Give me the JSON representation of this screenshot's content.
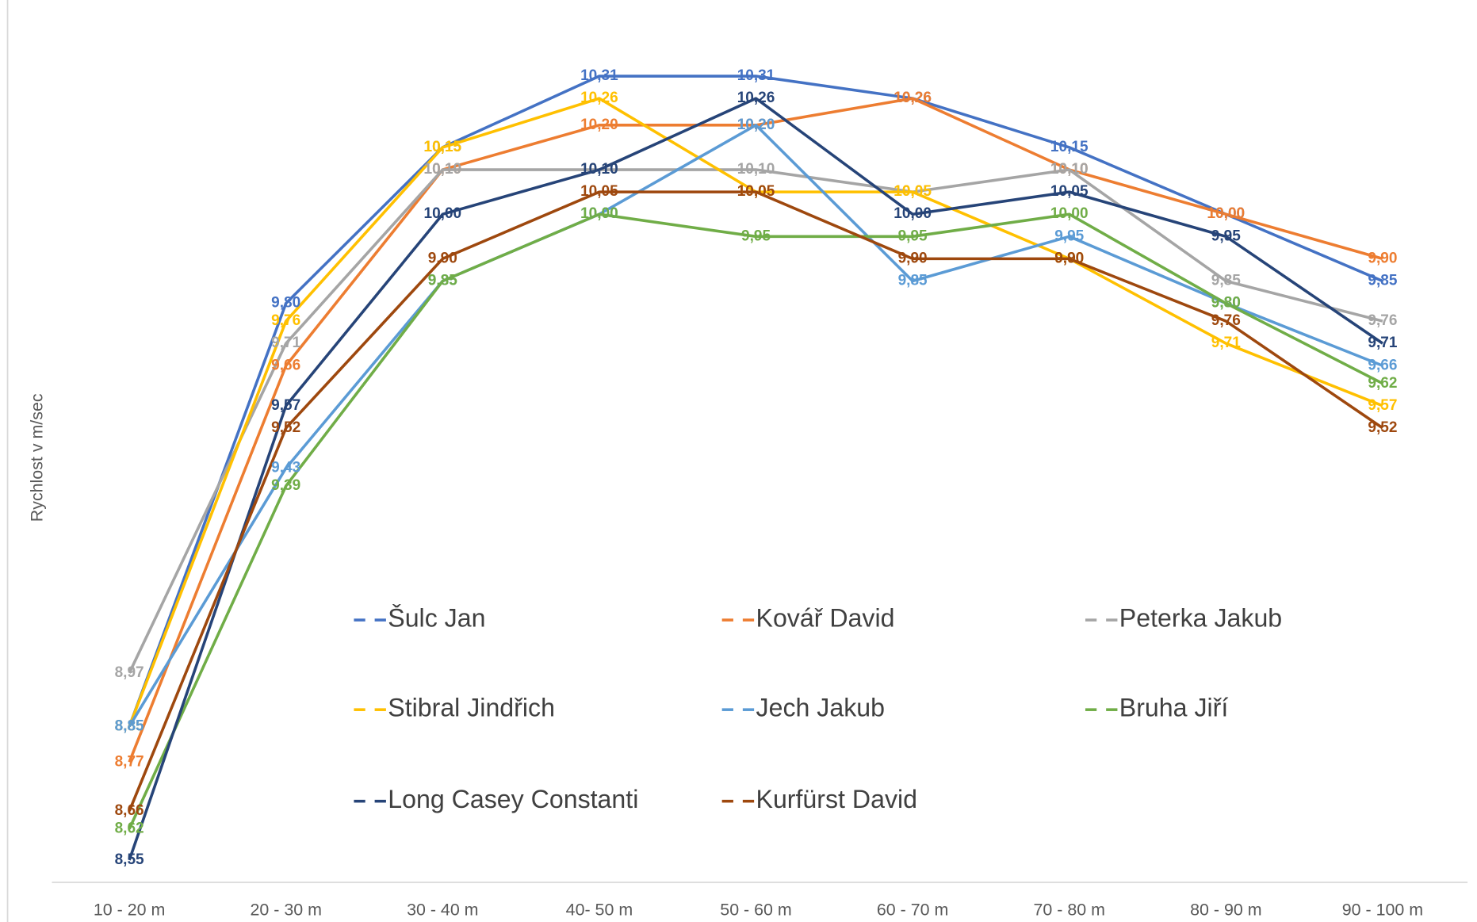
{
  "chart_data": {
    "type": "line",
    "y_label": "Rychlost v m/sec",
    "categories": [
      "10 - 20 m",
      "20 - 30 m",
      "30 - 40 m",
      "40- 50 m",
      "50 - 60 m",
      "60 - 70 m",
      "70 - 80 m",
      "80 - 90 m",
      "90 - 100 m"
    ],
    "ylim": [
      8.5,
      10.5
    ],
    "grid": false,
    "legend": "bottom",
    "series": [
      {
        "name": "Šulc Jan",
        "color": "#4472c4",
        "values": [
          8.85,
          9.8,
          10.15,
          10.31,
          10.31,
          10.26,
          10.15,
          10.0,
          9.85
        ],
        "value_labels": [
          "8,85",
          "9,80",
          "10,15",
          "10,31",
          "10,31",
          "10,26",
          "10,15",
          "10,00",
          "9,85"
        ]
      },
      {
        "name": "Kovář David",
        "color": "#ed7d31",
        "values": [
          8.77,
          9.66,
          10.1,
          10.2,
          10.2,
          10.26,
          10.1,
          10.0,
          9.9
        ],
        "value_labels": [
          "8,77",
          "9,66",
          "10,10",
          "10,20",
          "10,20",
          "10,26",
          "10,10",
          "10,00",
          "9,90"
        ]
      },
      {
        "name": "Peterka Jakub",
        "color": "#a5a5a5",
        "values": [
          8.97,
          9.71,
          10.1,
          10.1,
          10.1,
          10.05,
          10.1,
          9.85,
          9.76
        ],
        "value_labels": [
          "8,97",
          "9,71",
          "10,10",
          "10,10",
          "10,10",
          "10,05",
          "10,10",
          "9,85",
          "9,76"
        ]
      },
      {
        "name": "Stibral Jindřich",
        "color": "#ffc000",
        "values": [
          8.85,
          9.76,
          10.15,
          10.26,
          10.05,
          10.05,
          9.9,
          9.71,
          9.57
        ],
        "value_labels": [
          "8,85",
          "9,76",
          "10,15",
          "10,26",
          "10,05",
          "10,05",
          "9,90",
          "9,71",
          "9,57"
        ]
      },
      {
        "name": "Jech Jakub",
        "color": "#5b9bd5",
        "values": [
          8.85,
          9.43,
          9.85,
          10.0,
          10.2,
          9.85,
          9.95,
          9.8,
          9.66
        ],
        "value_labels": [
          "8,85",
          "9,43",
          "9,85",
          "10,00",
          "10,20",
          "9,85",
          "9,95",
          "9,80",
          "9,66"
        ]
      },
      {
        "name": "Bruha Jiří",
        "color": "#70ad47",
        "values": [
          8.62,
          9.39,
          9.85,
          10.0,
          9.95,
          9.95,
          10.0,
          9.8,
          9.62
        ],
        "value_labels": [
          "8,62",
          "9,39",
          "9,85",
          "10,00",
          "9,95",
          "9,95",
          "10,00",
          "9,80",
          "9,62"
        ]
      },
      {
        "name": "Long Casey Constanti",
        "color": "#264478",
        "values": [
          8.55,
          9.57,
          10.0,
          10.1,
          10.26,
          10.0,
          10.05,
          9.95,
          9.71
        ],
        "value_labels": [
          "8,55",
          "9,57",
          "10,00",
          "10,10",
          "10,26",
          "10,00",
          "10,05",
          "9,95",
          "9,71"
        ]
      },
      {
        "name": "Kurfürst David",
        "color": "#9e480e",
        "values": [
          8.66,
          9.52,
          9.9,
          10.05,
          10.05,
          9.9,
          9.9,
          9.76,
          9.52
        ],
        "value_labels": [
          "8,66",
          "9,52",
          "9,90",
          "10,05",
          "10,05",
          "9,90",
          "9,90",
          "9,76",
          "9,52"
        ]
      }
    ]
  }
}
